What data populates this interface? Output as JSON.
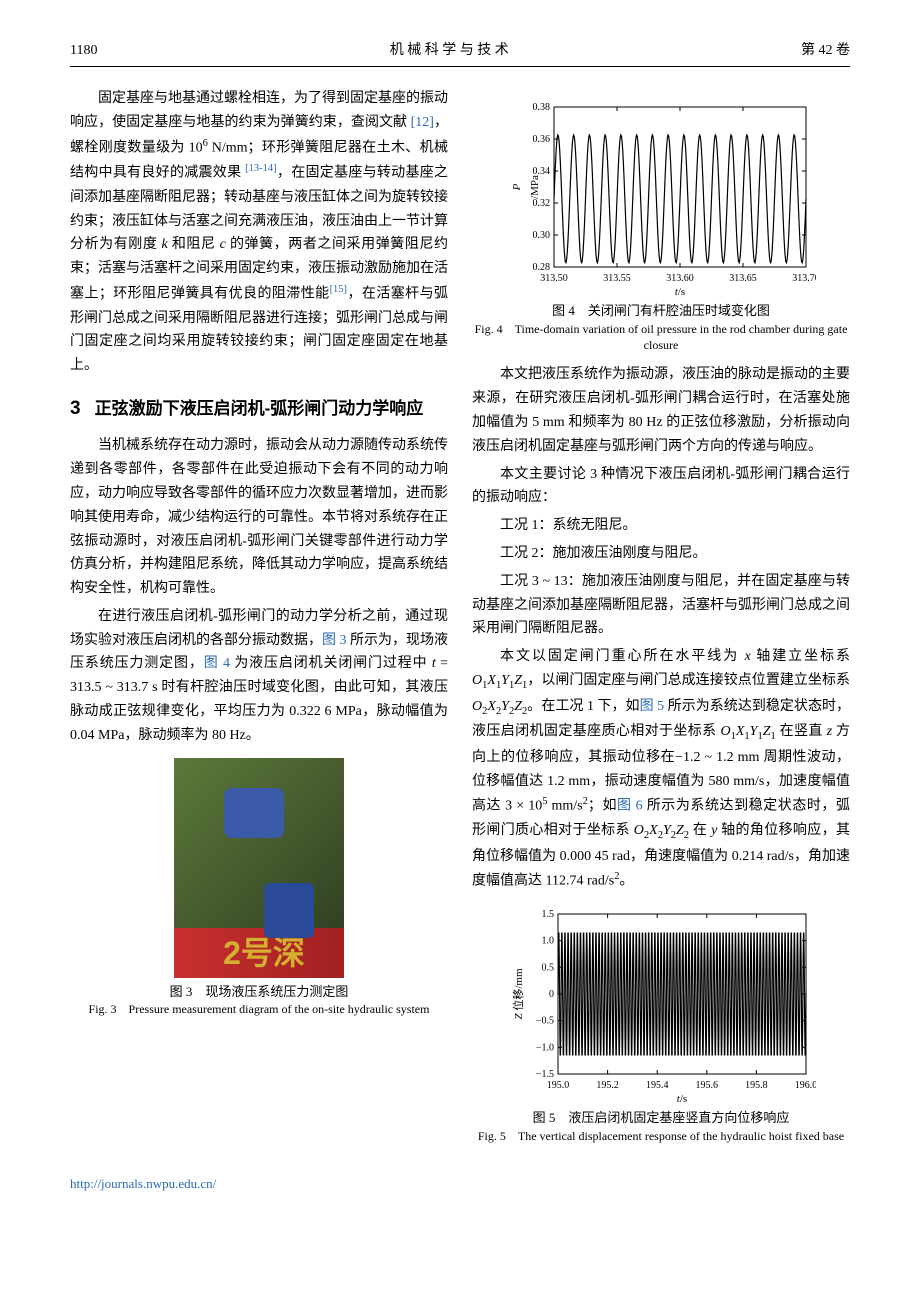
{
  "header": {
    "page_num": "1180",
    "journal": "机 械 科 学 与 技 术",
    "volume": "第 42 卷"
  },
  "left_col": {
    "para1_a": "固定基座与地基通过螺栓相连，为了得到固定基座的振动响应，使固定基座与地基的约束为弹簧约束，查阅文献 ",
    "ref12": "[12]",
    "para1_b": "，螺栓刚度数量级为 10",
    "para1_exp": "6",
    "para1_c": " N/mm；环形弹簧阻尼器在土木、机械结构中具有良好的减震效果 ",
    "ref1314": "[13-14]",
    "para1_d": "，在固定基座与转动基座之间添加基座隔断阻尼器；转动基座与液压缸体之间为旋转铰接约束；液压缸体与活塞之间充满液压油，液压油由上一节计算分析为有刚度 ",
    "ital_k": "k",
    "para1_e": " 和阻尼 ",
    "ital_c": "c",
    "para1_f": " 的弹簧，两者之间采用弹簧阻尼约束；活塞与活塞杆之间采用固定约束，液压振动激励施加在活塞上；环形阻尼弹簧具有优良的阻滞性能",
    "ref15": "[15]",
    "para1_g": "，在活塞杆与弧形闸门总成之间采用隔断阻尼器进行连接；弧形闸门总成与闸门固定座之间均采用旋转铰接约束；闸门固定座固定在地基上。",
    "section3_num": "3",
    "section3_title": "正弦激励下液压启闭机-弧形闸门动力学响应",
    "para2": "当机械系统存在动力源时，振动会从动力源随传动系统传递到各零部件，各零部件在此受迫振动下会有不同的动力响应，动力响应导致各零部件的循环应力次数显著增加，进而影响其使用寿命，减少结构运行的可靠性。本节将对系统存在正弦振动源时，对液压启闭机-弧形闸门关键零部件进行动力学仿真分析，并构建阻尼系统，降低其动力学响应，提高系统结构安全性，机构可靠性。",
    "para3_a": "在进行液压启闭机-弧形闸门的动力学分析之前，通过现场实验对液压启闭机的各部分振动数据，",
    "fig3_ref": "图 3",
    "para3_b": " 所示为，现场液压系统压力测定图，",
    "fig4_ref": "图 4",
    "para3_c": " 为液压启闭机关闭闸门过程中 ",
    "ital_t": "t",
    "para3_d": " = 313.5 ~ 313.7 s 时有杆腔油压时域变化图，由此可知，其液压脉动成正弦规律变化，平均压力为 0.322 6 MPa，脉动幅值为 0.04 MPa，脉动频率为 80 Hz。",
    "photo_text": "2号深",
    "fig3_caption_cn": "图 3　现场液压系统压力测定图",
    "fig3_caption_en": "Fig. 3　Pressure measurement diagram of the on-site hydraulic system"
  },
  "right_col": {
    "fig4_caption_cn": "图 4　关闭闸门有杆腔油压时域变化图",
    "fig4_caption_en": "Fig. 4　Time-domain variation of oil pressure in the rod chamber during gate closure",
    "para1": "本文把液压系统作为振动源，液压油的脉动是振动的主要来源，在研究液压启闭机-弧形闸门耦合运行时，在活塞处施加幅值为 5 mm 和频率为 80 Hz 的正弦位移激励，分析振动向液压启闭机固定基座与弧形闸门两个方向的传递与响应。",
    "para2": "本文主要讨论 3 种情况下液压启闭机-弧形闸门耦合运行的振动响应：",
    "case1": "工况 1：系统无阻尼。",
    "case2": "工况 2：施加液压油刚度与阻尼。",
    "case3": "工况 3 ~ 13：施加液压油刚度与阻尼，并在固定基座与转动基座之间添加基座隔断阻尼器，活塞杆与弧形闸门总成之间采用闸门隔断阻尼器。",
    "para3_a": "本文以固定闸门重心所在水平线为 ",
    "ital_x": "x",
    "para3_b": " 轴建立坐标系 ",
    "coord1": "O",
    "coord1_sub": "1",
    "coord1_b": "X",
    "coord1_sub2": "1",
    "coord1_c": "Y",
    "coord1_sub3": "1",
    "coord1_d": "Z",
    "coord1_sub4": "1",
    "para3_c": "，以闸门固定座与闸门总成连接铰点位置建立坐标系 ",
    "coord2": "O",
    "coord2_sub": "2",
    "coord2_b": "X",
    "coord2_sub2": "2",
    "coord2_c": "Y",
    "coord2_sub3": "2",
    "coord2_d": "Z",
    "coord2_sub4": "2",
    "para3_d": "。在工况 1 下，如",
    "fig5_ref": "图 5",
    "para3_e": " 所示为系统达到稳定状态时，液压启闭机固定基座质心相对于坐标系 ",
    "para3_f": " 在竖直 ",
    "ital_z": "z",
    "para3_g": " 方向上的位移响应，其振动位移在−1.2 ~ 1.2 mm 周期性波动，位移幅值达 1.2 mm，振动速度幅值为 580 mm/s，加速度幅值高达 3 × 10",
    "exp5": "5",
    "para3_h": " mm/s",
    "exp2": "2",
    "para3_i": "；如",
    "fig6_ref": "图 6",
    "para3_j": " 所示为系统达到稳定状态时，弧形闸门质心相对于坐标系 ",
    "para3_k": " 在 ",
    "ital_y": "y",
    "para3_l": " 轴的角位移响应，其角位移幅值为 0.000 45 rad，角速度幅值为 0.214 rad/s，角加速度幅值高达 112.74 rad/s",
    "para3_m": "。",
    "fig5_caption_cn": "图 5　液压启闭机固定基座竖直方向位移响应",
    "fig5_caption_en": "Fig. 5　The vertical displacement response of the hydraulic hoist fixed base"
  },
  "fig4_chart": {
    "ylabel": "P/MPa",
    "xlabel": "t/s",
    "xticks": [
      "313.50",
      "313.55",
      "313.60",
      "313.65",
      "313.70"
    ],
    "yticks": [
      "0.28",
      "0.30",
      "0.32",
      "0.34",
      "0.36",
      "0.38"
    ],
    "ylim": [
      0.28,
      0.38
    ],
    "xlim": [
      313.5,
      313.7
    ],
    "amplitude": 0.04,
    "mean": 0.3226,
    "cycles": 16,
    "line_color": "#000000",
    "bg_color": "#ffffff",
    "axis_color": "#000000"
  },
  "fig5_chart": {
    "ylabel": "Z 位移/mm",
    "xlabel": "t/s",
    "xticks": [
      "195.0",
      "195.2",
      "195.4",
      "195.6",
      "195.8",
      "196.0"
    ],
    "yticks": [
      "−1.5",
      "−1.0",
      "−0.5",
      "0",
      "0.5",
      "1.0",
      "1.5"
    ],
    "ylim": [
      -1.5,
      1.5
    ],
    "xlim": [
      195.0,
      196.0
    ],
    "amplitude": 1.2,
    "cycles_per_02": 16,
    "line_color": "#000000",
    "bg_color": "#ffffff",
    "axis_color": "#000000"
  },
  "footer": {
    "url": "http://journals.nwpu.edu.cn/"
  }
}
